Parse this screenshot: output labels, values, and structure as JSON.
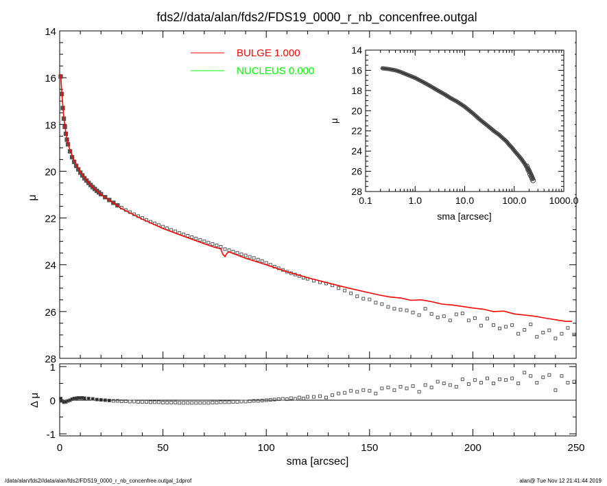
{
  "chart_data": [
    {
      "type": "scatter",
      "panel": "main",
      "title": "fds2//data/alan/fds2/FDS19_0000_r_nb_concenfree.outgal",
      "xlabel": "sma [arcsec]",
      "ylabel": "μ",
      "xlim": [
        0,
        250
      ],
      "ylim": [
        28,
        14
      ],
      "y_inverted": true,
      "xticks": [
        "0",
        "50",
        "100",
        "150",
        "200",
        "250"
      ],
      "yticks": [
        "14",
        "16",
        "18",
        "20",
        "22",
        "24",
        "26",
        "28"
      ],
      "legend": {
        "placement": "top-center",
        "entries": [
          {
            "label": "BULGE  1.000",
            "color": "#ff0000"
          },
          {
            "label": "NUCLEUS  0.000",
            "color": "#00ff00"
          }
        ]
      },
      "observed": {
        "marker": "open-square",
        "color": "#555555",
        "x": [
          0.5,
          1,
          1.5,
          2,
          2.5,
          3,
          3.5,
          4,
          5,
          6,
          7,
          8,
          9,
          10,
          11,
          12,
          13,
          14,
          15,
          16,
          17,
          18,
          19,
          20,
          22,
          24,
          26,
          28,
          30,
          32,
          34,
          36,
          38,
          40,
          42,
          44,
          46,
          48,
          50,
          52,
          54,
          56,
          58,
          60,
          62,
          64,
          66,
          68,
          70,
          72,
          74,
          76,
          78,
          80,
          82,
          84,
          86,
          88,
          90,
          92,
          94,
          96,
          98,
          100,
          102,
          104,
          106,
          108,
          110,
          112,
          114,
          116,
          118,
          120,
          123,
          126,
          129,
          132,
          135,
          138,
          141,
          144,
          147,
          150,
          153,
          156,
          159,
          162,
          165,
          168,
          171,
          174,
          177,
          180,
          183,
          186,
          189,
          192,
          195,
          198,
          201,
          204,
          207,
          210,
          213,
          216,
          219,
          222,
          225,
          228,
          231,
          234,
          237,
          240,
          243,
          246,
          249
        ],
        "y": [
          15.95,
          16.7,
          17.3,
          17.75,
          18.1,
          18.4,
          18.65,
          18.85,
          19.15,
          19.4,
          19.6,
          19.77,
          19.92,
          20.06,
          20.18,
          20.3,
          20.4,
          20.5,
          20.59,
          20.68,
          20.76,
          20.84,
          20.91,
          20.98,
          21.11,
          21.23,
          21.35,
          21.46,
          21.56,
          21.66,
          21.75,
          21.84,
          21.92,
          22.0,
          22.08,
          22.16,
          22.23,
          22.3,
          22.37,
          22.44,
          22.51,
          22.57,
          22.64,
          22.7,
          22.76,
          22.82,
          22.88,
          22.94,
          23.0,
          23.06,
          23.11,
          23.17,
          23.23,
          23.33,
          23.38,
          23.44,
          23.49,
          23.55,
          23.6,
          23.66,
          23.71,
          23.78,
          23.84,
          23.92,
          24.0,
          24.08,
          24.15,
          24.22,
          24.3,
          24.36,
          24.42,
          24.48,
          24.55,
          24.6,
          24.68,
          24.75,
          24.8,
          24.88,
          25.0,
          25.1,
          25.22,
          25.35,
          25.45,
          25.48,
          25.62,
          25.68,
          25.8,
          25.88,
          25.92,
          25.95,
          26.04,
          26.15,
          25.88,
          26.1,
          26.25,
          26.2,
          26.38,
          26.12,
          26.08,
          26.38,
          26.28,
          26.6,
          26.3,
          26.58,
          26.72,
          26.65,
          26.58,
          26.95,
          26.78,
          26.55,
          27.08,
          26.9,
          26.8,
          27.15,
          26.95,
          26.7,
          26.98
        ]
      },
      "model": {
        "name": "BULGE  1.000",
        "color": "#ff0000",
        "x": [
          0.5,
          1,
          2,
          3,
          4,
          5,
          7,
          10,
          15,
          20,
          30,
          40,
          50,
          60,
          70,
          75,
          78,
          79,
          80,
          81,
          82,
          90,
          100,
          110,
          120,
          130,
          140,
          150,
          155,
          160,
          165,
          170,
          175,
          180,
          185,
          190,
          195,
          200,
          205,
          210,
          215,
          220,
          225,
          230,
          235,
          240,
          245,
          248
        ],
        "y": [
          15.85,
          16.6,
          17.7,
          18.35,
          18.8,
          19.1,
          19.55,
          20.05,
          20.6,
          21.0,
          21.6,
          22.05,
          22.45,
          22.78,
          23.1,
          23.25,
          23.32,
          23.55,
          23.65,
          23.5,
          23.45,
          23.72,
          24.0,
          24.3,
          24.55,
          24.78,
          25.0,
          25.2,
          25.3,
          25.38,
          25.42,
          25.52,
          25.5,
          25.58,
          25.68,
          25.72,
          25.78,
          25.85,
          25.9,
          26.0,
          25.98,
          26.1,
          26.15,
          26.2,
          26.28,
          26.35,
          26.42,
          26.42
        ]
      }
    },
    {
      "type": "line",
      "panel": "inset",
      "xlabel": "sma [arcsec]",
      "ylabel": "μ",
      "x_scale": "log",
      "xlim": [
        0.1,
        1000
      ],
      "ylim": [
        28,
        14
      ],
      "y_inverted": true,
      "xticks": [
        "0.1",
        "1.0",
        "10.0",
        "100.0",
        "1000.0"
      ],
      "yticks": [
        "14",
        "16",
        "18",
        "20",
        "22",
        "24",
        "26",
        "28"
      ],
      "line": {
        "color": "#555555",
        "x": [
          0.22,
          0.3,
          0.4,
          0.5,
          0.7,
          1.0,
          1.5,
          2,
          3,
          4,
          5,
          7,
          10,
          15,
          20,
          30,
          40,
          50,
          60,
          70,
          80,
          90,
          100,
          120,
          140,
          160,
          180,
          200,
          220,
          240
        ],
        "y": [
          15.8,
          15.88,
          16.0,
          16.15,
          16.45,
          16.75,
          17.2,
          17.55,
          18.05,
          18.4,
          18.7,
          19.1,
          19.6,
          20.3,
          20.85,
          21.55,
          22.05,
          22.4,
          22.75,
          23.05,
          23.4,
          23.65,
          23.95,
          24.4,
          24.8,
          25.2,
          25.6,
          25.95,
          26.3,
          26.75
        ]
      },
      "circles": {
        "x": [
          180,
          190,
          200,
          210,
          220,
          230,
          240
        ],
        "y": [
          25.5,
          25.8,
          26.0,
          26.3,
          26.5,
          26.7,
          26.9
        ]
      }
    },
    {
      "type": "scatter",
      "panel": "residual",
      "xlabel": "sma [arcsec]",
      "ylabel": "Δ μ",
      "xlim": [
        0,
        250
      ],
      "ylim": [
        -1,
        1
      ],
      "yticks": [
        "1",
        "0",
        "-1"
      ],
      "xticks": [
        "0",
        "50",
        "100",
        "150",
        "200",
        "250"
      ],
      "x": [
        0.5,
        1,
        2,
        3,
        4,
        5,
        6,
        7,
        8,
        9,
        10,
        11,
        12,
        14,
        16,
        18,
        20,
        22,
        24,
        26,
        28,
        30,
        32,
        34,
        36,
        38,
        40,
        42,
        44,
        46,
        48,
        50,
        52,
        54,
        56,
        58,
        60,
        62,
        64,
        66,
        68,
        70,
        72,
        74,
        76,
        78,
        80,
        82,
        84,
        86,
        88,
        90,
        92,
        94,
        96,
        98,
        100,
        102,
        104,
        106,
        108,
        110,
        112,
        114,
        116,
        118,
        120,
        123,
        126,
        129,
        132,
        135,
        138,
        141,
        144,
        147,
        150,
        153,
        156,
        159,
        162,
        165,
        168,
        171,
        174,
        177,
        180,
        183,
        186,
        189,
        192,
        195,
        198,
        201,
        204,
        207,
        210,
        213,
        216,
        219,
        222,
        225,
        228,
        231,
        234,
        237,
        240,
        243,
        246,
        249
      ],
      "y": [
        0.05,
        -0.02,
        -0.06,
        -0.05,
        -0.02,
        0.0,
        0.03,
        0.05,
        0.06,
        0.07,
        0.07,
        0.07,
        0.06,
        0.05,
        0.04,
        0.02,
        0.01,
        0.0,
        -0.01,
        -0.02,
        -0.02,
        -0.03,
        -0.03,
        -0.04,
        -0.04,
        -0.05,
        -0.05,
        -0.05,
        -0.06,
        -0.06,
        -0.06,
        -0.07,
        -0.07,
        -0.07,
        -0.07,
        -0.08,
        -0.08,
        -0.08,
        -0.08,
        -0.08,
        -0.08,
        -0.08,
        -0.08,
        -0.07,
        -0.07,
        -0.06,
        -0.06,
        -0.06,
        -0.05,
        -0.05,
        -0.04,
        -0.04,
        -0.03,
        -0.02,
        -0.02,
        -0.01,
        0.0,
        0.01,
        0.02,
        0.03,
        0.04,
        0.03,
        0.06,
        0.04,
        0.08,
        0.05,
        0.1,
        0.1,
        0.12,
        0.08,
        0.15,
        0.2,
        0.22,
        0.28,
        0.25,
        0.3,
        0.28,
        0.2,
        0.35,
        0.38,
        0.3,
        0.4,
        0.35,
        0.42,
        0.25,
        0.45,
        0.38,
        0.55,
        0.5,
        0.45,
        0.4,
        0.62,
        0.48,
        0.6,
        0.52,
        0.65,
        0.5,
        0.62,
        0.6,
        0.65,
        0.5,
        0.82,
        0.72,
        0.52,
        0.68,
        0.75,
        0.3,
        0.72,
        0.52,
        0.55
      ]
    }
  ],
  "footer": {
    "left": "/data/alan/fds2//data/alan/fds2/FDS19_0000_r_nb_concenfree.outgal_1dprof",
    "right": "alan@  Tue Nov 12 21:41:44 2019"
  }
}
